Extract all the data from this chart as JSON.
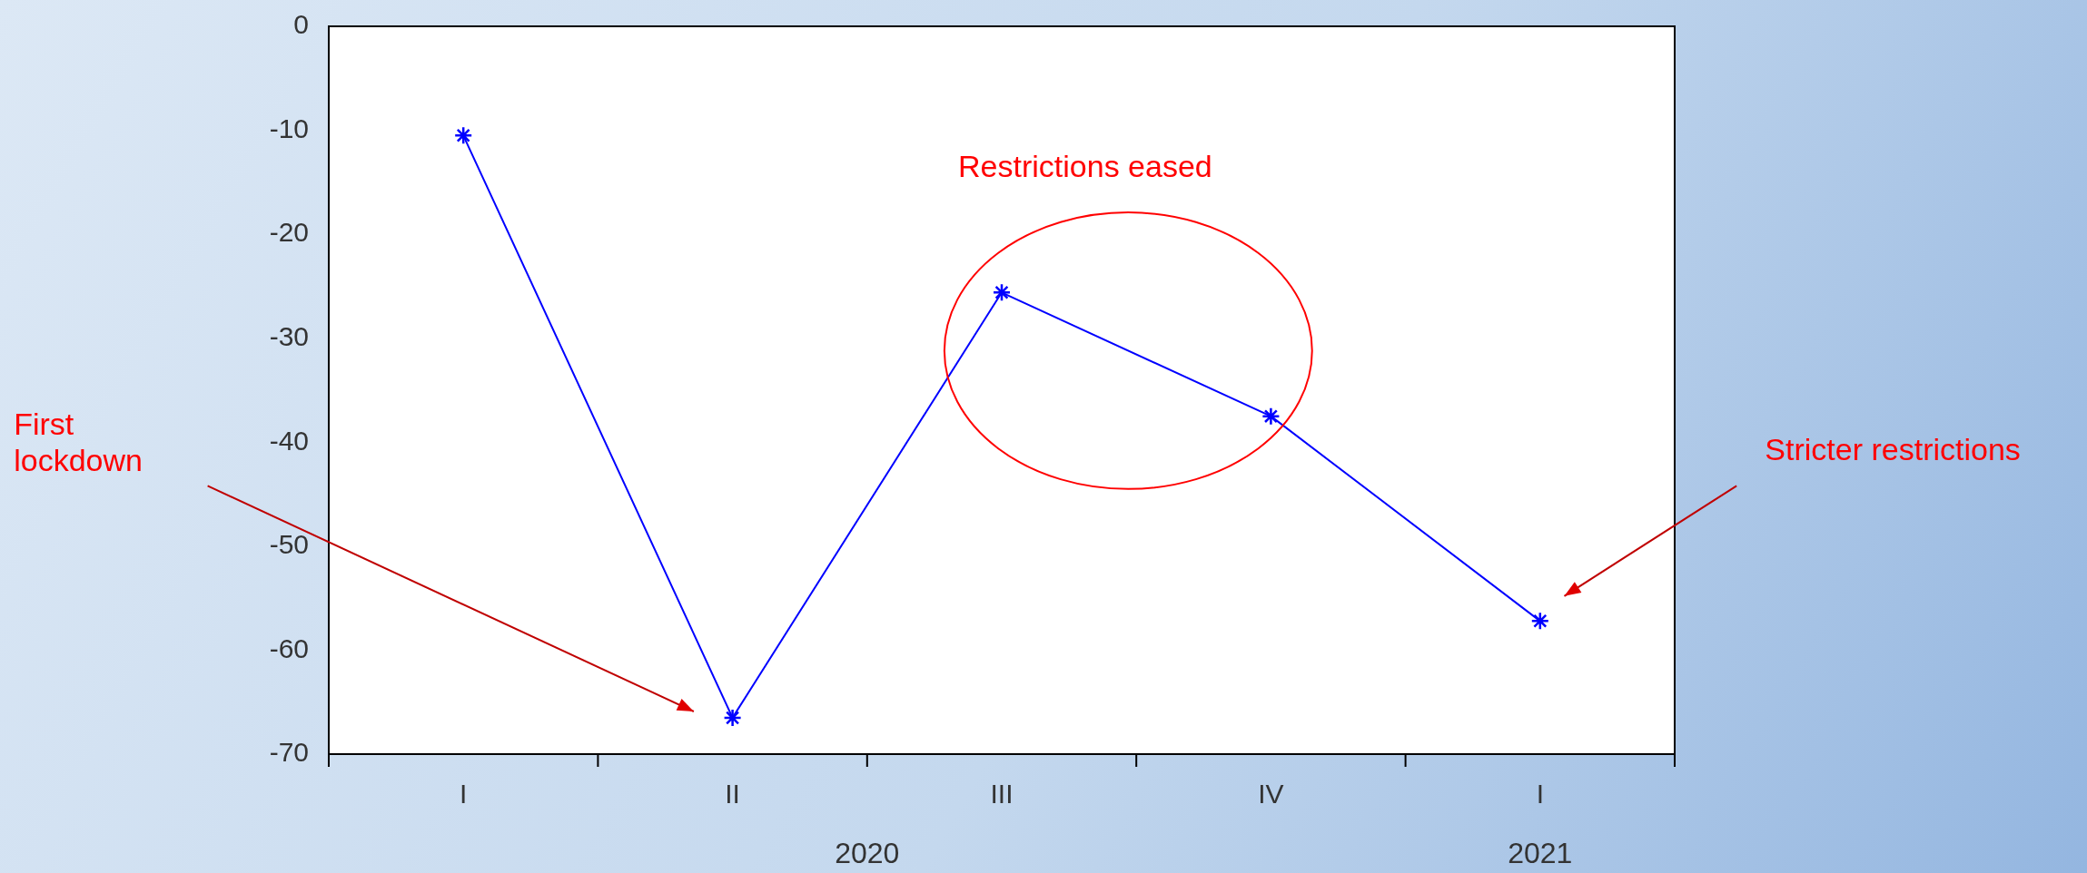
{
  "chart_data": {
    "type": "line",
    "categories": [
      "I",
      "II",
      "III",
      "IV",
      "I"
    ],
    "series": [
      {
        "color": "#0000ff",
        "values": [
          -10.5,
          -66.5,
          -25.6,
          -37.5,
          -57.2
        ]
      }
    ],
    "ylim": [
      -70,
      0
    ],
    "yticks": [
      -70,
      -60,
      -50,
      -40,
      -30,
      -20,
      -10,
      0
    ],
    "marker": "cross",
    "line_style": "solid",
    "grid": false,
    "legend": false,
    "annotations": [
      "Restrictions eased",
      "First lockdown",
      "Stricter restrictions",
      "2020",
      "2021"
    ]
  }
}
